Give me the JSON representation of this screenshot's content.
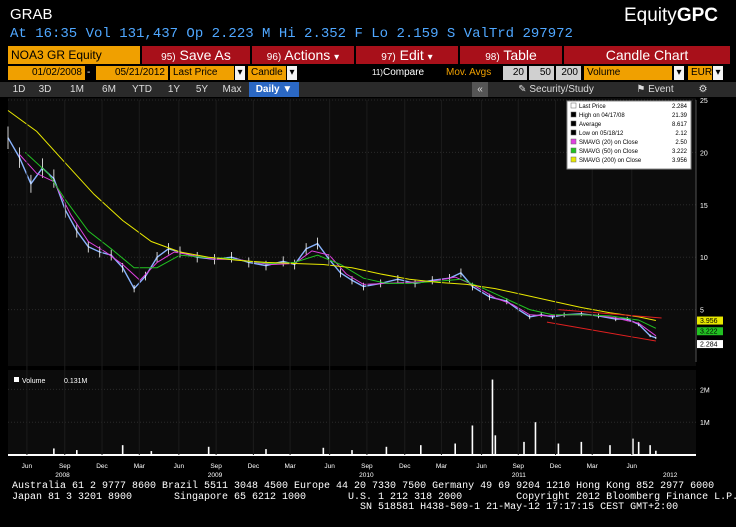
{
  "header": {
    "function": "GRAB",
    "brand_prefix": "Equity",
    "brand_suffix": "GPC",
    "quote_line": "At 16:35 Vol 131,437 Op 2.223 M Hi 2.352 F Lo 2.159 S ValTrd  297972"
  },
  "toolbar": {
    "security": "NOA3 GR Equity",
    "save_num": "95)",
    "save_label": "Save As",
    "actions_num": "96)",
    "actions_label": "Actions",
    "edit_num": "97)",
    "edit_label": "Edit",
    "table_num": "98)",
    "table_label": "Table",
    "chart_type": "Candle Chart",
    "dropdown_arrow": "▾"
  },
  "settings": {
    "start_date": "01/02/2008",
    "dash": "-",
    "end_date": "05/21/2012",
    "price_field": "Last Price",
    "style": "Candle",
    "compare_num": "11)",
    "compare_label": "Compare",
    "mov_avgs": "Mov. Avgs",
    "ma1": "20",
    "ma2": "50",
    "ma3": "200",
    "volume": "Volume",
    "currency": "EUR"
  },
  "periods": {
    "items": [
      "1D",
      "3D",
      "1M",
      "6M",
      "YTD",
      "1Y",
      "5Y",
      "Max"
    ],
    "selected": "Daily",
    "arrow": "▼",
    "collapse": "«",
    "security_study": "Security/Study",
    "event": "Event"
  },
  "legend": {
    "rows": [
      {
        "label": "Last Price",
        "value": "2.284",
        "color": "#ffffff"
      },
      {
        "label": "High on 04/17/08",
        "value": "21.39",
        "color": "#000000"
      },
      {
        "label": "Average",
        "value": "8.617",
        "color": "#000000"
      },
      {
        "label": "Low on 05/18/12",
        "value": "2.12",
        "color": "#000000"
      },
      {
        "label": "SMAVG (20) on Close",
        "value": "2.50",
        "color": "#e040e0"
      },
      {
        "label": "SMAVG (50) on Close",
        "value": "3.222",
        "color": "#22c022"
      },
      {
        "label": "SMAVG (200) on Close",
        "value": "3.956",
        "color": "#e8e800"
      }
    ],
    "volume_label": "Volume",
    "volume_value": "0.131M"
  },
  "price_tags": [
    {
      "value": "3.956",
      "color": "#e8e800"
    },
    {
      "value": "3.222",
      "color": "#22c022"
    },
    {
      "value": "2.284",
      "color": "#ffffff"
    }
  ],
  "footer": {
    "lines": [
      "Australia 61 2 9777 8600 Brazil 5511 3048 4500 Europe 44 20 7330 7500 Germany 49 69 9204 1210 Hong Kong 852 2977 6000",
      "Japan 81 3 3201 8900       Singapore 65 6212 1000       U.S. 1 212 318 2000         Copyright 2012 Bloomberg Finance L.P.",
      "                                                          SN 518581 H438-509-1 21-May-12 17:17:15 CEST GMT+2:00"
    ]
  },
  "colors": {
    "accent": "#f0a000",
    "button_red": "#a8101a",
    "quote_blue": "#4fa7ff",
    "selected_blue": "#2b68c4",
    "price": "#8ab4ff",
    "sma20": "#e040e0",
    "sma50": "#22c022",
    "sma200": "#e8e800",
    "channel": "#e02020"
  },
  "chart_data": [
    {
      "type": "line",
      "title": "",
      "x_label": "",
      "y_label": "",
      "ylim": [
        0,
        25
      ],
      "y_ticks": [
        5,
        10,
        15,
        20,
        25
      ],
      "grid": true,
      "legend_position": "top-right",
      "x_ticks": [
        {
          "label": "Jun",
          "t": 0.033
        },
        {
          "label": "Sep",
          "t": 0.099
        },
        {
          "label": "Dec",
          "t": 0.164
        },
        {
          "label": "Mar",
          "t": 0.229
        },
        {
          "label": "Jun",
          "t": 0.298
        },
        {
          "label": "Sep",
          "t": 0.363
        },
        {
          "label": "Dec",
          "t": 0.428
        },
        {
          "label": "Mar",
          "t": 0.492
        },
        {
          "label": "Jun",
          "t": 0.561
        },
        {
          "label": "Sep",
          "t": 0.626
        },
        {
          "label": "Dec",
          "t": 0.692
        },
        {
          "label": "Mar",
          "t": 0.756
        },
        {
          "label": "Jun",
          "t": 0.826
        },
        {
          "label": "Sep",
          "t": 0.89
        },
        {
          "label": "Dec",
          "t": 0.955
        },
        {
          "label": "Mar",
          "t": 1.019
        },
        {
          "label": "Jun",
          "t": 1.088
        }
      ],
      "year_labels": [
        {
          "label": "2008",
          "t": 0.095
        },
        {
          "label": "2009",
          "t": 0.361
        },
        {
          "label": "2010",
          "t": 0.625
        },
        {
          "label": "2011",
          "t": 0.891
        },
        {
          "label": "2012",
          "t": 1.155
        }
      ],
      "x_fraction_domain": [
        0,
        1.2
      ],
      "series": [
        {
          "name": "Last Price",
          "color": "#8ab4ff",
          "points": [
            [
              0,
              21.4
            ],
            [
              0.02,
              19.5
            ],
            [
              0.04,
              17.0
            ],
            [
              0.06,
              18.5
            ],
            [
              0.08,
              17.5
            ],
            [
              0.1,
              14.5
            ],
            [
              0.12,
              12.5
            ],
            [
              0.14,
              11.0
            ],
            [
              0.16,
              10.5
            ],
            [
              0.18,
              10.2
            ],
            [
              0.2,
              9.0
            ],
            [
              0.22,
              7.0
            ],
            [
              0.24,
              8.2
            ],
            [
              0.26,
              10.0
            ],
            [
              0.28,
              10.8
            ],
            [
              0.3,
              10.5
            ],
            [
              0.33,
              10.0
            ],
            [
              0.36,
              9.8
            ],
            [
              0.39,
              10.0
            ],
            [
              0.42,
              9.5
            ],
            [
              0.45,
              9.2
            ],
            [
              0.48,
              9.6
            ],
            [
              0.5,
              9.3
            ],
            [
              0.52,
              10.8
            ],
            [
              0.54,
              11.3
            ],
            [
              0.56,
              9.8
            ],
            [
              0.58,
              8.5
            ],
            [
              0.6,
              7.8
            ],
            [
              0.62,
              7.2
            ],
            [
              0.65,
              7.5
            ],
            [
              0.68,
              7.9
            ],
            [
              0.71,
              7.5
            ],
            [
              0.74,
              7.8
            ],
            [
              0.77,
              8.0
            ],
            [
              0.79,
              8.5
            ],
            [
              0.81,
              7.2
            ],
            [
              0.84,
              6.2
            ],
            [
              0.87,
              5.8
            ],
            [
              0.89,
              5.0
            ],
            [
              0.91,
              4.3
            ],
            [
              0.93,
              4.5
            ],
            [
              0.95,
              4.3
            ],
            [
              0.97,
              4.5
            ],
            [
              1.0,
              4.6
            ],
            [
              1.03,
              4.4
            ],
            [
              1.06,
              4.1
            ],
            [
              1.08,
              4.1
            ],
            [
              1.1,
              3.6
            ],
            [
              1.12,
              2.5
            ],
            [
              1.13,
              2.3
            ]
          ]
        },
        {
          "name": "SMAVG (20) on Close",
          "color": "#e040e0",
          "points": [
            [
              0.02,
              19.8
            ],
            [
              0.05,
              18.0
            ],
            [
              0.08,
              17.2
            ],
            [
              0.11,
              14.0
            ],
            [
              0.14,
              11.5
            ],
            [
              0.17,
              10.5
            ],
            [
              0.2,
              9.3
            ],
            [
              0.23,
              7.8
            ],
            [
              0.26,
              9.5
            ],
            [
              0.29,
              10.5
            ],
            [
              0.33,
              10.1
            ],
            [
              0.36,
              9.8
            ],
            [
              0.4,
              9.8
            ],
            [
              0.43,
              9.5
            ],
            [
              0.46,
              9.3
            ],
            [
              0.5,
              9.4
            ],
            [
              0.53,
              10.6
            ],
            [
              0.56,
              10.2
            ],
            [
              0.59,
              8.4
            ],
            [
              0.62,
              7.4
            ],
            [
              0.66,
              7.5
            ],
            [
              0.7,
              7.6
            ],
            [
              0.74,
              7.7
            ],
            [
              0.78,
              8.1
            ],
            [
              0.81,
              7.4
            ],
            [
              0.85,
              6.1
            ],
            [
              0.88,
              5.5
            ],
            [
              0.91,
              4.5
            ],
            [
              0.94,
              4.4
            ],
            [
              0.98,
              4.5
            ],
            [
              1.02,
              4.5
            ],
            [
              1.06,
              4.2
            ],
            [
              1.1,
              3.7
            ],
            [
              1.13,
              2.5
            ]
          ]
        },
        {
          "name": "SMAVG (50) on Close",
          "color": "#22c022",
          "points": [
            [
              0.03,
              20.0
            ],
            [
              0.07,
              18.0
            ],
            [
              0.1,
              15.5
            ],
            [
              0.14,
              12.5
            ],
            [
              0.18,
              10.8
            ],
            [
              0.22,
              9.0
            ],
            [
              0.26,
              9.0
            ],
            [
              0.3,
              10.2
            ],
            [
              0.34,
              10.0
            ],
            [
              0.38,
              9.9
            ],
            [
              0.42,
              9.6
            ],
            [
              0.46,
              9.4
            ],
            [
              0.5,
              9.5
            ],
            [
              0.54,
              10.2
            ],
            [
              0.58,
              9.3
            ],
            [
              0.62,
              8.0
            ],
            [
              0.66,
              7.5
            ],
            [
              0.7,
              7.5
            ],
            [
              0.75,
              7.7
            ],
            [
              0.79,
              7.9
            ],
            [
              0.83,
              7.0
            ],
            [
              0.87,
              6.0
            ],
            [
              0.91,
              5.0
            ],
            [
              0.95,
              4.5
            ],
            [
              1.0,
              4.5
            ],
            [
              1.05,
              4.4
            ],
            [
              1.1,
              4.0
            ],
            [
              1.13,
              3.22
            ]
          ]
        },
        {
          "name": "SMAVG (200) on Close",
          "color": "#e8e800",
          "points": [
            [
              0.0,
              24.0
            ],
            [
              0.05,
              22.0
            ],
            [
              0.1,
              19.0
            ],
            [
              0.15,
              16.0
            ],
            [
              0.2,
              13.5
            ],
            [
              0.25,
              11.5
            ],
            [
              0.3,
              10.5
            ],
            [
              0.35,
              10.0
            ],
            [
              0.4,
              9.7
            ],
            [
              0.45,
              9.5
            ],
            [
              0.5,
              9.4
            ],
            [
              0.55,
              9.3
            ],
            [
              0.6,
              9.0
            ],
            [
              0.65,
              8.4
            ],
            [
              0.7,
              7.9
            ],
            [
              0.75,
              7.6
            ],
            [
              0.8,
              7.4
            ],
            [
              0.85,
              7.0
            ],
            [
              0.9,
              6.4
            ],
            [
              0.95,
              5.8
            ],
            [
              1.0,
              5.2
            ],
            [
              1.05,
              4.7
            ],
            [
              1.1,
              4.3
            ],
            [
              1.13,
              3.96
            ]
          ]
        }
      ],
      "channel_lines": [
        {
          "color": "#e02020",
          "points": [
            [
              0.96,
              5.0
            ],
            [
              1.14,
              4.2
            ]
          ]
        },
        {
          "color": "#e02020",
          "points": [
            [
              0.94,
              3.8
            ],
            [
              1.13,
              2.0
            ]
          ]
        }
      ]
    },
    {
      "type": "bar",
      "title": "",
      "ylim": [
        0,
        2.5
      ],
      "y_ticks": [
        {
          "value": 1,
          "label": "1M"
        },
        {
          "value": 2,
          "label": "2M"
        }
      ],
      "unit": "M",
      "spikes": [
        [
          0.08,
          0.2
        ],
        [
          0.12,
          0.15
        ],
        [
          0.2,
          0.3
        ],
        [
          0.25,
          0.12
        ],
        [
          0.35,
          0.25
        ],
        [
          0.45,
          0.18
        ],
        [
          0.55,
          0.22
        ],
        [
          0.6,
          0.15
        ],
        [
          0.66,
          0.25
        ],
        [
          0.72,
          0.3
        ],
        [
          0.78,
          0.35
        ],
        [
          0.81,
          0.9
        ],
        [
          0.845,
          2.3
        ],
        [
          0.85,
          0.6
        ],
        [
          0.9,
          0.4
        ],
        [
          0.92,
          1.0
        ],
        [
          0.96,
          0.35
        ],
        [
          1.0,
          0.4
        ],
        [
          1.05,
          0.3
        ],
        [
          1.09,
          0.5
        ],
        [
          1.1,
          0.4
        ],
        [
          1.12,
          0.3
        ],
        [
          1.13,
          0.13
        ]
      ],
      "last_value": "0.131M"
    }
  ]
}
